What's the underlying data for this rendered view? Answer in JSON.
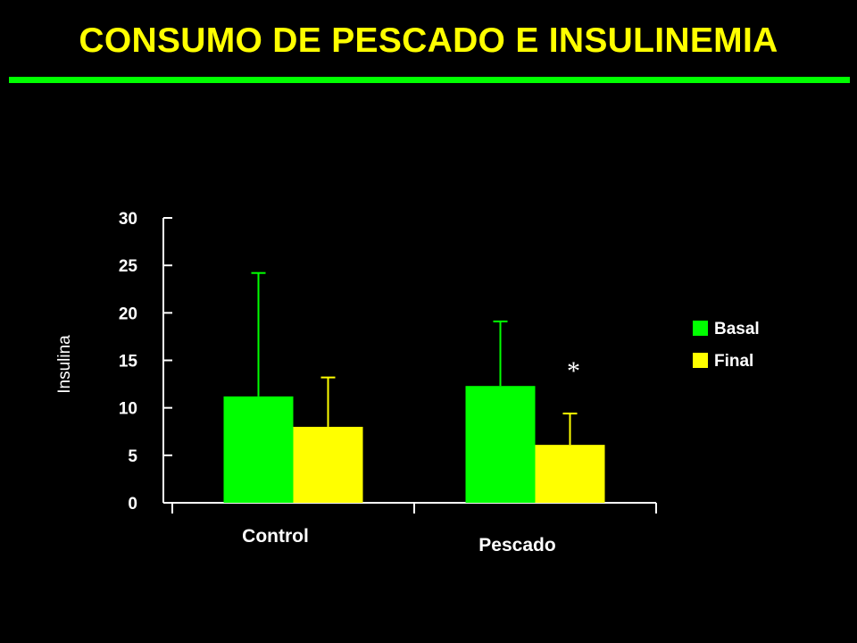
{
  "title": "CONSUMO DE PESCADO E INSULINEMIA",
  "colors": {
    "basal": "#00ff00",
    "final": "#ffff00",
    "title": "#ffff00",
    "rule": "#00ff00",
    "background": "#000000"
  },
  "chart_data": {
    "type": "bar",
    "title": "",
    "xlabel": "",
    "ylabel": "Insulina",
    "ylim": [
      0,
      30
    ],
    "yticks": [
      0,
      5,
      10,
      15,
      20,
      25,
      30
    ],
    "categories": [
      "Control",
      "Pescado"
    ],
    "series": [
      {
        "name": "Basal",
        "color": "#00ff00",
        "values": [
          11.2,
          12.3
        ],
        "error_upper": [
          24.2,
          19.1
        ]
      },
      {
        "name": "Final",
        "color": "#ffff00",
        "values": [
          8.0,
          6.1
        ],
        "error_upper": [
          13.2,
          9.4
        ]
      }
    ],
    "annotations": [
      {
        "text": "*",
        "category": "Pescado",
        "series": "Final"
      }
    ],
    "legend": {
      "placement": "right",
      "entries": [
        "Basal",
        "Final"
      ]
    },
    "grid": false
  }
}
